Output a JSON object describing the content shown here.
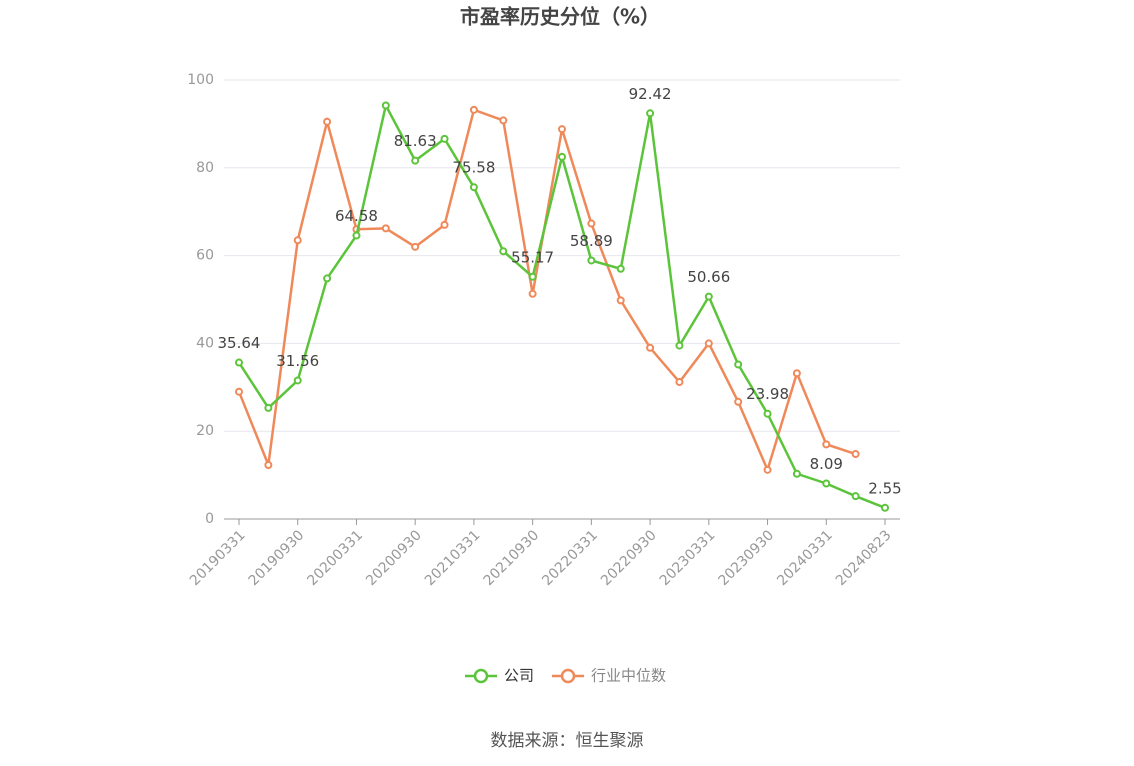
{
  "chart_data": {
    "type": "line",
    "title": "市盈率历史分位（%）",
    "source": "数据来源：恒生聚源",
    "categories": [
      "20190331",
      null,
      "20190930",
      null,
      "20200331",
      null,
      "20200930",
      null,
      "20210331",
      null,
      "20210930",
      null,
      "20220331",
      null,
      "20220930",
      null,
      "20230331",
      null,
      "20230930",
      null,
      "20240331",
      null,
      "20240823"
    ],
    "series": [
      {
        "name": "公司",
        "color": "#5cc43a",
        "values": [
          35.64,
          25.3,
          31.56,
          54.8,
          64.58,
          94.2,
          81.63,
          86.6,
          75.58,
          61,
          55.17,
          82.5,
          58.89,
          57,
          92.42,
          39.5,
          50.66,
          35.2,
          23.98,
          10.3,
          8.09,
          5.2,
          2.55
        ]
      },
      {
        "name": "行业中位数",
        "color": "#f0895a",
        "values": [
          29,
          12.3,
          63.5,
          90.5,
          66,
          66.2,
          62,
          67,
          93.2,
          90.8,
          51.3,
          88.8,
          67.3,
          49.8,
          39,
          31.2,
          40,
          26.7,
          11.2,
          33.2,
          17,
          14.8,
          null
        ]
      }
    ],
    "ylim": [
      0,
      100
    ],
    "yticks": [
      0,
      20,
      40,
      60,
      80,
      100
    ],
    "grid": true
  }
}
